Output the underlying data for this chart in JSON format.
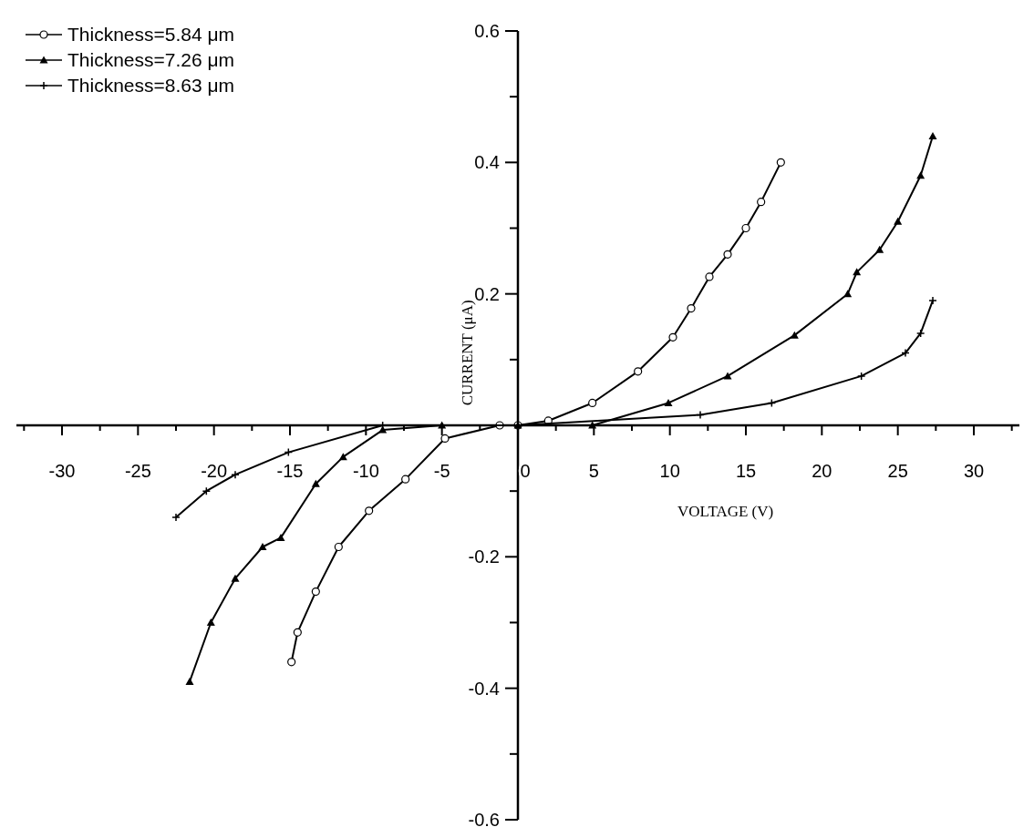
{
  "chart_data": {
    "type": "line",
    "xlabel": "VOLTAGE (V)",
    "ylabel": "CURRENT (μA)",
    "legend": "top left",
    "grid": false,
    "xlim": [
      -33,
      33
    ],
    "xticks": [
      {
        "value": -32.5,
        "label": null
      },
      -30,
      {
        "value": -27.5,
        "label": null
      },
      -25,
      {
        "value": -22.5,
        "label": null
      },
      -20,
      {
        "value": -17.5,
        "label": null
      },
      -15,
      {
        "value": -12.5,
        "label": null
      },
      -10,
      {
        "value": -7.5,
        "label": null
      },
      -5,
      {
        "value": -2.5,
        "label": null
      },
      0,
      {
        "value": 2.5,
        "label": null
      },
      5,
      {
        "value": 7.5,
        "label": null
      },
      10,
      {
        "value": 12.5,
        "label": null
      },
      15,
      {
        "value": 17.5,
        "label": null
      },
      20,
      {
        "value": 22.5,
        "label": null
      },
      25,
      {
        "value": 27.5,
        "label": null
      },
      30,
      {
        "value": 32.5,
        "label": null
      }
    ],
    "ylim": [
      -0.6,
      0.6
    ],
    "yticks": [
      -0.6,
      {
        "value": -0.5,
        "label": null
      },
      -0.4,
      {
        "value": -0.3,
        "label": null
      },
      -0.2,
      {
        "value": -0.1,
        "label": null
      },
      {
        "value": 0,
        "label": null
      },
      {
        "value": 0.1,
        "label": null
      },
      0.2,
      {
        "value": 0.3,
        "label": null
      },
      0.4,
      {
        "value": 0.5,
        "label": null
      },
      0.6
    ],
    "series": [
      {
        "name": "Thickness=5.84 μm",
        "color": "#000000",
        "marker": "circle",
        "x": [
          -14.9,
          -14.5,
          -13.3,
          -11.8,
          -9.8,
          -7.4,
          -4.8,
          -1.2,
          0,
          2,
          4.9,
          7.9,
          10.2,
          11.4,
          12.6,
          13.8,
          15,
          16,
          17.3
        ],
        "values": [
          -0.36,
          -0.315,
          -0.253,
          -0.185,
          -0.13,
          -0.082,
          -0.02,
          0,
          0,
          0.007,
          0.034,
          0.082,
          0.134,
          0.178,
          0.226,
          0.26,
          0.3,
          0.34,
          0.4
        ]
      },
      {
        "name": "Thickness=7.26 μm",
        "color": "#000000",
        "marker": "triangle",
        "x": [
          -21.6,
          -20.2,
          -18.6,
          -16.8,
          -15.6,
          -13.3,
          -11.5,
          -8.9,
          -5,
          0,
          4.9,
          9.9,
          13.8,
          18.2,
          21.7,
          22.3,
          23.8,
          25,
          26.5,
          27.3
        ],
        "values": [
          -0.39,
          -0.3,
          -0.233,
          -0.185,
          -0.171,
          -0.089,
          -0.048,
          -0.007,
          0,
          0,
          0,
          0.034,
          0.075,
          0.137,
          0.2,
          0.233,
          0.267,
          0.31,
          0.38,
          0.44
        ]
      },
      {
        "name": "Thickness=8.63 μm",
        "color": "#000000",
        "marker": "cross",
        "x": [
          -22.5,
          -20.5,
          -18.6,
          -15.1,
          -8.9,
          0,
          12,
          16.7,
          22.6,
          25.5,
          26.5,
          27.3
        ],
        "values": [
          -0.14,
          -0.1,
          -0.075,
          -0.041,
          0,
          0,
          0.016,
          0.034,
          0.075,
          0.11,
          0.14,
          0.19
        ]
      }
    ]
  }
}
